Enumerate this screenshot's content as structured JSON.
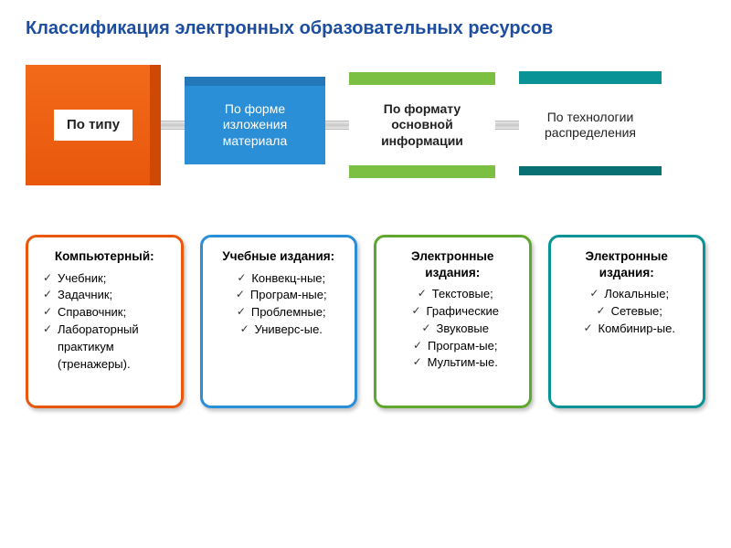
{
  "title": "Классификация электронных образовательных ресурсов",
  "colors": {
    "title": "#1d4d9e",
    "card_shadow": "rgba(0,0,0,0.25)"
  },
  "categories": [
    {
      "label": "По типу",
      "block_bg": "#e8570c",
      "block_text": "#222222",
      "card_border": "#e8570c",
      "card_title": "Компьютерный:",
      "items": [
        "Учебник;",
        "Задачник;",
        "Справочник;",
        "Лабораторный практикум (тренажеры)."
      ]
    },
    {
      "label": "По форме изложения материала",
      "block_bg": "#2a8fd6",
      "block_text": "#ffffff",
      "card_border": "#2a8fd6",
      "card_title": "Учебные издания:",
      "items": [
        "Конвекц-ные;",
        "Програм-ные;",
        "Проблемные;",
        "Универс-ые."
      ]
    },
    {
      "label": "По формату основной информации",
      "block_bg": "#7bc043",
      "block_text": "#222222",
      "card_border": "#5fa82d",
      "card_title": "Электронные издания:",
      "items": [
        "Текстовые;",
        "Графические",
        "Звуковые",
        "Програм-ые;",
        "Мультим-ые."
      ]
    },
    {
      "label": "По технологии распределения",
      "block_bg": "#0a9396",
      "block_text": "#222222",
      "card_border": "#0a9396",
      "card_title": "Электронные издания:",
      "items": [
        "Локальные;",
        "Сетевые;",
        "Комбинир-ые."
      ]
    }
  ]
}
